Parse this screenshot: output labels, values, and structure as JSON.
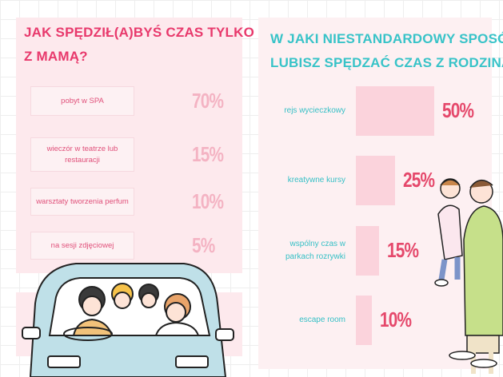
{
  "chart_data": [
    {
      "type": "list",
      "title": [
        "JAK SPĘDZIŁ(A)BYŚ CZAS TYLKO",
        "Z MAMĄ?"
      ],
      "categories": [
        "pobyt w SPA",
        "wieczór w teatrze lub restauracji",
        "warsztaty tworzenia perfum",
        "na sesji zdjęciowej"
      ],
      "values": [
        70,
        15,
        10,
        5
      ],
      "value_labels": [
        "70%",
        "15%",
        "10%",
        "5%"
      ],
      "color": "#f4b3c3"
    },
    {
      "type": "bar",
      "title": [
        "W JAKI NIESTANDARDOWY SPOSÓB",
        "LUBISZ SPĘDZAĆ CZAS Z RODZINĄ?"
      ],
      "categories": [
        "rejs wycieczkowy",
        "kreatywne kursy",
        "wspólny czas w parkach rozrywki",
        "escape room"
      ],
      "values": [
        50,
        25,
        15,
        10
      ],
      "value_labels": [
        "50%",
        "25%",
        "15%",
        "10%"
      ],
      "color": "#fbd3dc"
    }
  ]
}
